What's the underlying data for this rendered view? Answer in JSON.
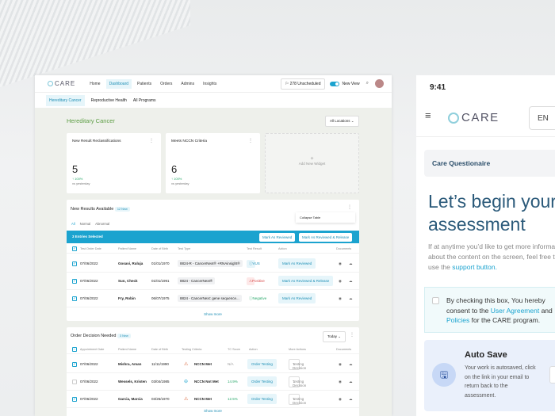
{
  "desktop": {
    "logo": "CARE",
    "nav": [
      "Home",
      "Dashboard",
      "Patients",
      "Orders",
      "Admins",
      "Insights"
    ],
    "unscheduled": "278 Unscheduled",
    "new_view": "New View",
    "subtabs": [
      "Hereditary Cancer",
      "Reproductive Health",
      "All Programs"
    ],
    "title": "Hereditary Cancer",
    "locations": "All Locations",
    "cards": [
      {
        "title": "New Result Reclassifications",
        "value": "5",
        "change": "100%",
        "vs": "vs yesterday"
      },
      {
        "title": "Meets NCCN Criteria",
        "value": "6",
        "change": "100%",
        "vs": "vs yesterday"
      }
    ],
    "add_widget": "Add New Widget",
    "results": {
      "title": "New Results Available",
      "badge": "12 New",
      "collapse": "Collapse Table",
      "filters": [
        "All",
        "Normal",
        "Abnormal"
      ],
      "selected": "3 Entries Selected",
      "mark": "Mark As Reviewed",
      "mark_release": "Mark As Reviewed & Release",
      "columns": [
        "Test Order Date",
        "Patient Name",
        "Date of Birth",
        "Test Type",
        "Test Result",
        "Action",
        "Documents"
      ],
      "rows": [
        {
          "date": "07/06/2022",
          "name": "Gosavi, Ruluja",
          "dob": "01/01/1970",
          "type": "8824-R - CancerNext® +RNAinsight®",
          "result": "VUS",
          "action": "Mark As Reviewed"
        },
        {
          "date": "07/06/2022",
          "name": "Sun, Check",
          "dob": "01/01/1991",
          "type": "8824 - CancerNext®",
          "result": "Positive",
          "action": "Mark As Reviewed & Release"
        },
        {
          "date": "07/06/2022",
          "name": "Fry, Robin",
          "dob": "06/07/1975",
          "type": "8824 - CancerNext: gene sequence...",
          "result": "Negative",
          "action": "Mark As Reviewed"
        }
      ],
      "show_more": "Show more"
    },
    "orders": {
      "title": "Order Decision Needed",
      "badge": "3 New",
      "period": "Today",
      "columns": [
        "Appointment Date",
        "Patient Name",
        "Date of Birth",
        "Testing Criteria",
        "TC Score",
        "Action",
        "More Actions",
        "Documents"
      ],
      "rows": [
        {
          "date": "07/06/2022",
          "name": "Mishra, Aman",
          "dob": "11/11/1990",
          "criteria": "NCCN Met",
          "score": "N/A",
          "action": "Order Testing",
          "more": "Testing Decision",
          "checked": true
        },
        {
          "date": "07/06/2022",
          "name": "Wessels, Kristen",
          "dob": "03/04/1985",
          "criteria": "NCCN Not Met",
          "score": "14.9%",
          "action": "Order Testing",
          "more": "Testing Decision",
          "checked": false
        },
        {
          "date": "07/06/2022",
          "name": "Garcia, Marcia",
          "dob": "03/26/1970",
          "criteria": "NCCN Met",
          "score": "12.5%",
          "action": "Order Testing",
          "more": "Testing Decision",
          "checked": true
        }
      ],
      "show_more": "Show more"
    }
  },
  "mobile": {
    "time": "9:41",
    "logo": "CARE",
    "lang": "EN",
    "section": "Care Questionaire",
    "heading1": "Let’s begin your",
    "heading2": "assessment",
    "para": "If at anytime you’d like to get more information about the content on the screen, feel free to use the",
    "para_link": "support button.",
    "consent_pre": "By checking this box, You hereby consent to the",
    "consent_link1": "User Agreement",
    "consent_mid": "and",
    "consent_link2": "Policies",
    "consent_post": "for the CARE program.",
    "autosave_title": "Auto Save",
    "autosave_text": "Your work is autosaved, click on the link in your email to return back to the assessment."
  },
  "colors": {
    "accent": "#1ba3cf",
    "green": "#5d9e45",
    "positive": "#e05555"
  }
}
